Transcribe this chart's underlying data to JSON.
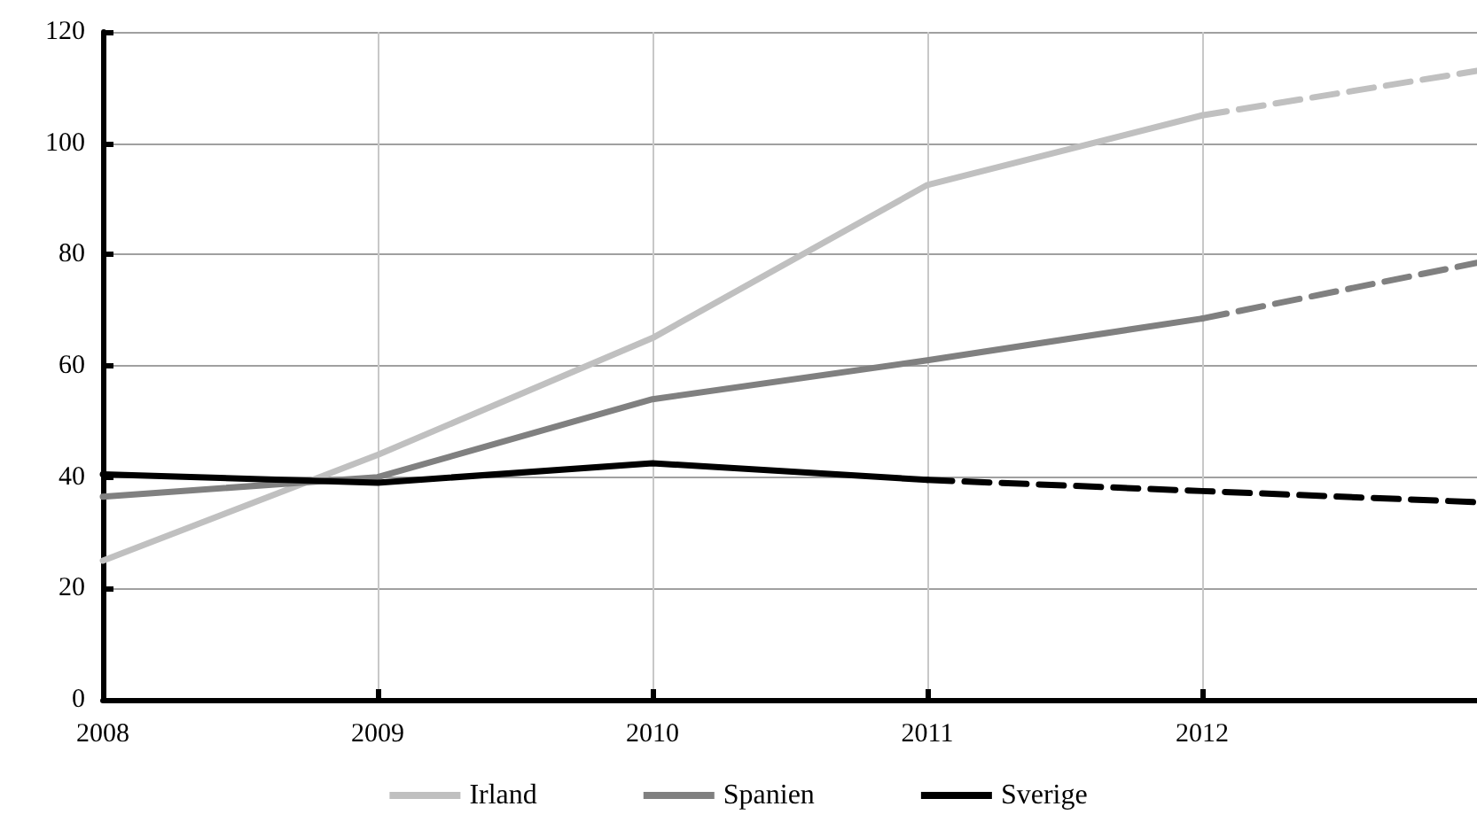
{
  "chart_data": {
    "type": "line",
    "xlim": [
      2008,
      2013
    ],
    "xticks": [
      2008,
      2009,
      2010,
      2011,
      2012
    ],
    "ylim": [
      0,
      120
    ],
    "yticks": [
      0,
      20,
      40,
      60,
      80,
      100,
      120
    ],
    "grid": true,
    "legend": "bottom",
    "marker": "none",
    "series": [
      {
        "name": "Irland",
        "color": "#c0c0c0",
        "line_style": "solid",
        "x": [
          2008,
          2009,
          2010,
          2011,
          2012
        ],
        "values": [
          25,
          44,
          65,
          92.5,
          105
        ]
      },
      {
        "color": "#c0c0c0",
        "line_style": "dashed",
        "x": [
          2012,
          2013
        ],
        "values": [
          105,
          113
        ]
      },
      {
        "name": "Spanien",
        "color": "#808080",
        "line_style": "solid",
        "x": [
          2008,
          2009,
          2010,
          2011,
          2012
        ],
        "values": [
          36.5,
          40,
          54,
          61,
          68.5
        ]
      },
      {
        "color": "#808080",
        "line_style": "dashed",
        "x": [
          2012,
          2013
        ],
        "values": [
          68.5,
          78.5
        ]
      },
      {
        "name": "Sverige",
        "color": "#000000",
        "line_style": "solid",
        "x": [
          2008,
          2009,
          2010,
          2011
        ],
        "values": [
          40.5,
          39,
          42.5,
          39.5
        ]
      },
      {
        "color": "#000000",
        "line_style": "dashed",
        "x": [
          2011,
          2012,
          2013
        ],
        "values": [
          39.5,
          37.5,
          35.5
        ]
      }
    ]
  }
}
